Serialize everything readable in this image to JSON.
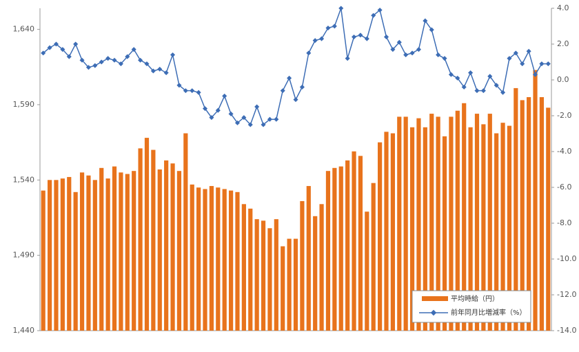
{
  "chart_data": {
    "type": "bar-line",
    "series": [
      {
        "name": "平均時給（円）",
        "type": "bar",
        "color": "#e8731c",
        "values": [
          1533,
          1540,
          1540,
          1541,
          1542,
          1532,
          1545,
          1543,
          1540,
          1548,
          1541,
          1549,
          1545,
          1544,
          1546,
          1561,
          1568,
          1560,
          1547,
          1553,
          1551,
          1546,
          1571,
          1537,
          1535,
          1534,
          1536,
          1535,
          1534,
          1533,
          1532,
          1524,
          1521,
          1514,
          1513,
          1508,
          1514,
          1496,
          1501,
          1501,
          1526,
          1536,
          1516,
          1524,
          1546,
          1548,
          1549,
          1553,
          1559,
          1556,
          1519,
          1538,
          1565,
          1572,
          1571,
          1582,
          1582,
          1575,
          1581,
          1575,
          1584,
          1582,
          1569,
          1582,
          1586,
          1591,
          1575,
          1584,
          1577,
          1584,
          1571,
          1578,
          1576,
          1601,
          1593,
          1595,
          1613,
          1595,
          1588
        ]
      },
      {
        "name": "前年同月比増減率（%）",
        "type": "line",
        "axis": "y2",
        "color": "#3d6db5",
        "values": [
          1.5,
          1.8,
          2.0,
          1.7,
          1.3,
          2.0,
          1.1,
          0.7,
          0.8,
          1.0,
          1.2,
          1.1,
          0.9,
          1.3,
          1.7,
          1.1,
          0.9,
          0.5,
          0.6,
          0.4,
          1.4,
          -0.3,
          -0.6,
          -0.6,
          -0.7,
          -1.6,
          -2.1,
          -1.7,
          -0.9,
          -1.9,
          -2.4,
          -2.1,
          -2.5,
          -1.5,
          -2.5,
          -2.2,
          -2.2,
          -0.6,
          0.1,
          -1.1,
          -0.4,
          1.5,
          2.2,
          2.3,
          2.9,
          3.0,
          4.0,
          1.2,
          2.4,
          2.5,
          2.3,
          3.6,
          3.9,
          2.4,
          1.7,
          2.1,
          1.4,
          1.5,
          1.7,
          3.3,
          2.8,
          1.4,
          1.2,
          0.3,
          0.1,
          -0.4,
          0.4,
          -0.6,
          -0.6,
          0.2,
          -0.3,
          -0.7,
          1.2,
          1.5,
          0.9,
          1.6,
          0.3,
          0.9,
          0.9
        ]
      }
    ],
    "ylim": [
      1440,
      1654
    ],
    "yticks": [
      {
        "value": 1440,
        "label": "1,440"
      },
      {
        "value": 1490,
        "label": "1,490"
      },
      {
        "value": 1540,
        "label": "1,540"
      },
      {
        "value": 1590,
        "label": "1,590"
      },
      {
        "value": 1640,
        "label": "1,640"
      }
    ],
    "y2lim": [
      -14,
      4
    ],
    "y2ticks": [
      {
        "value": 4,
        "label": "4.0"
      },
      {
        "value": 2,
        "label": "2.0"
      },
      {
        "value": 0,
        "label": "0.0"
      },
      {
        "value": -2,
        "label": "-2.0"
      },
      {
        "value": -4,
        "label": "-4.0"
      },
      {
        "value": -6,
        "label": "-6.0"
      },
      {
        "value": -8,
        "label": "-8.0"
      },
      {
        "value": -10,
        "label": "-10.0"
      },
      {
        "value": -12,
        "label": "-12.0"
      },
      {
        "value": -14,
        "label": "-14.0"
      }
    ],
    "legend": "bottom-right"
  }
}
